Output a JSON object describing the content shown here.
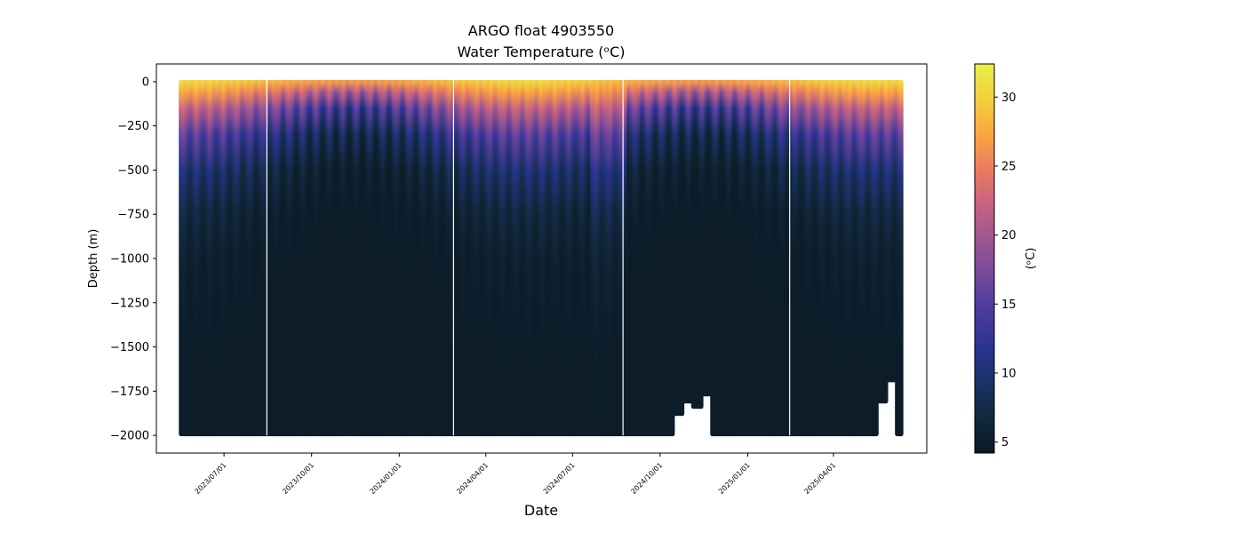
{
  "chart_data": {
    "type": "heatmap",
    "title": "ARGO float 4903550",
    "subtitle": "Water Temperature (ᵒC)",
    "xlabel": "Date",
    "ylabel": "Depth (m)",
    "x_tick_labels": [
      "2023/07/01",
      "2023/10/01",
      "2024/01/01",
      "2024/04/01",
      "2024/07/01",
      "2024/10/01",
      "2025/01/01",
      "2025/04/01"
    ],
    "x_range": [
      "2023-05-17",
      "2025-06-11"
    ],
    "x_lim": [
      "2023-04-21",
      "2025-07-08"
    ],
    "y_ticks": [
      0,
      -250,
      -500,
      -750,
      -1000,
      -1250,
      -1500,
      -1750,
      -2000
    ],
    "y_lim": [
      -2100,
      100
    ],
    "colorbar": {
      "label": "(ᵒC)",
      "range": [
        4.2,
        32.4
      ],
      "ticks": [
        5,
        10,
        15,
        20,
        25,
        30
      ],
      "colormap": [
        "#0b1a24",
        "#11283c",
        "#1a3268",
        "#2c3392",
        "#4a3a9e",
        "#74499c",
        "#9c5493",
        "#c76282",
        "#ec7a5f",
        "#f9a640",
        "#f4cf3a",
        "#e9f04a"
      ]
    },
    "profile_gaps": [
      "2023-08-15",
      "2024-02-27",
      "2024-08-23",
      "2025-02-14"
    ],
    "max_depth_exceptions": [
      {
        "date": "2024-10-20",
        "depth": -1880
      },
      {
        "date": "2024-10-30",
        "depth": -1810
      },
      {
        "date": "2024-11-09",
        "depth": -1840
      },
      {
        "date": "2024-11-19",
        "depth": -1770
      },
      {
        "date": "2025-05-22",
        "depth": -1810
      },
      {
        "date": "2025-06-01",
        "depth": -1690
      }
    ],
    "typical_max_depth": -1995,
    "surface_depth": 0
  }
}
